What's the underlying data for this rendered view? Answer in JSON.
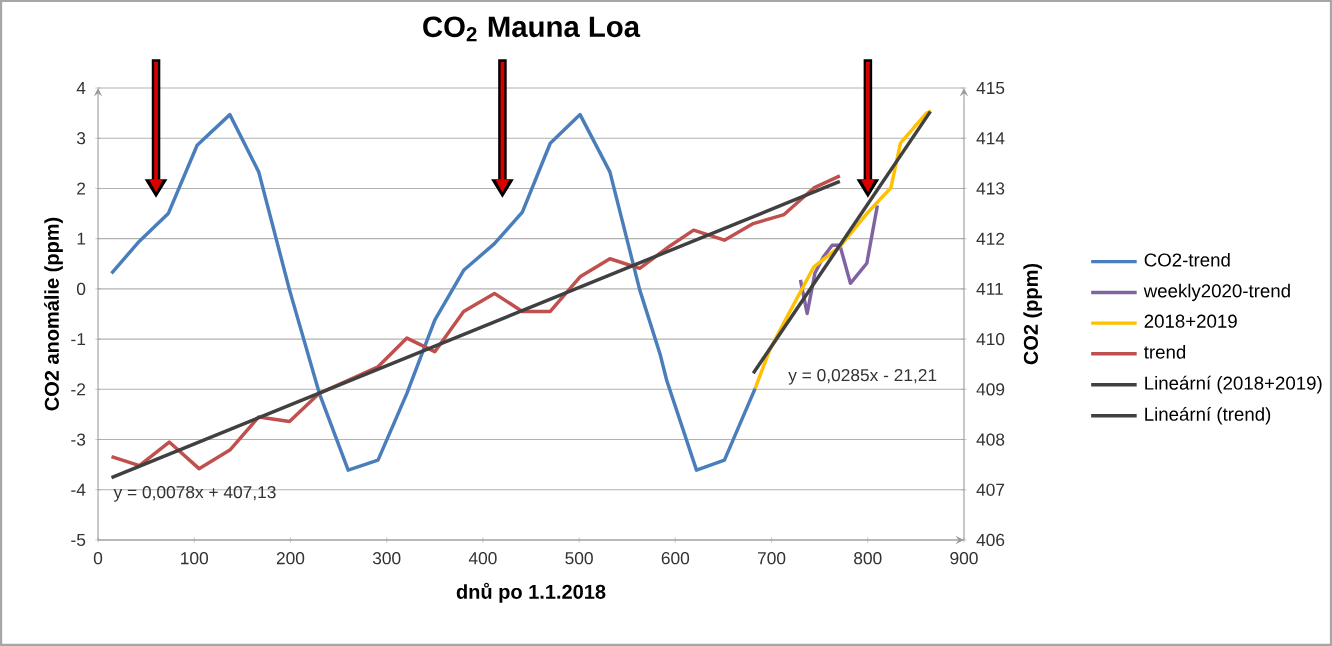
{
  "chart_data": {
    "type": "line",
    "title": "CO$_{2}$ Mauna Loa",
    "xlabel": "dnů po 1.1.2018",
    "ylabel": "CO2 anomálie (ppm)",
    "y2label": "CO2 (ppm)",
    "xlim": [
      0,
      900
    ],
    "xticks": [
      0,
      100,
      200,
      300,
      400,
      500,
      600,
      700,
      800,
      900
    ],
    "ylim": [
      -5,
      4
    ],
    "yticks": [
      -5,
      -4,
      -3,
      -2,
      -1,
      0,
      1,
      2,
      3,
      4
    ],
    "y2lim": [
      406,
      415
    ],
    "y2ticks": [
      406,
      407,
      408,
      409,
      410,
      411,
      412,
      413,
      414,
      415
    ],
    "grid": "y",
    "legend": "right",
    "marker": "none",
    "line_style": "solid",
    "annotations": [
      "y = 0,0078x + 407,13",
      "y = 0,0285x - 21,21"
    ],
    "series": [
      {
        "name": "CO2-trend",
        "color": "#4a7ebb",
        "x": [
          14,
          43,
          73,
          103,
          137,
          167,
          199,
          230,
          260,
          291,
          321,
          350,
          380,
          412,
          441,
          470,
          501,
          532,
          563,
          584,
          591,
          622,
          651,
          683
        ],
        "values": [
          0.31,
          0.95,
          1.5,
          2.86,
          3.47,
          2.33,
          -0.02,
          -2.08,
          -3.61,
          -3.41,
          -2.08,
          -0.62,
          0.37,
          0.9,
          1.53,
          2.9,
          3.47,
          2.33,
          -0.02,
          -1.29,
          -1.82,
          -3.61,
          -3.41,
          -1.98
        ]
      },
      {
        "name": "weekly2020-trend",
        "color": "#8064a2",
        "x": [
          730,
          737,
          745,
          754,
          763,
          771,
          782,
          799,
          810
        ],
        "values": [
          0.18,
          -0.49,
          0.31,
          0.64,
          0.87,
          0.87,
          0.11,
          0.51,
          1.66
        ]
      },
      {
        "name": "2018+2019",
        "color": "#ffc000",
        "x": [
          683,
          698,
          716,
          744,
          771,
          799,
          824,
          834,
          861,
          866
        ],
        "values": [
          -1.98,
          -1.22,
          -0.56,
          0.44,
          0.84,
          1.5,
          2.01,
          2.9,
          3.5,
          3.54
        ]
      },
      {
        "name": "trend",
        "color": "#c0504d",
        "axis": "y2",
        "x": [
          14,
          43,
          74,
          105,
          137,
          167,
          199,
          230,
          260,
          291,
          321,
          350,
          380,
          412,
          441,
          470,
          501,
          532,
          563,
          594,
          619,
          651,
          681,
          713,
          744,
          771
        ],
        "values": [
          407.66,
          407.48,
          407.95,
          407.42,
          407.79,
          408.45,
          408.36,
          408.92,
          409.18,
          409.45,
          410.02,
          409.75,
          410.55,
          410.91,
          410.55,
          410.55,
          411.24,
          411.6,
          411.41,
          411.85,
          412.17,
          411.97,
          412.3,
          412.48,
          413.01,
          413.25
        ]
      },
      {
        "name": "Lineární (2018+2019)",
        "color": "#404040",
        "x": [
          681,
          865
        ],
        "values": [
          -1.68,
          3.53
        ]
      },
      {
        "name": "Lineární (trend)",
        "color": "#404040",
        "axis": "y2",
        "x": [
          14,
          771
        ],
        "values": [
          407.24,
          413.14
        ]
      }
    ]
  }
}
